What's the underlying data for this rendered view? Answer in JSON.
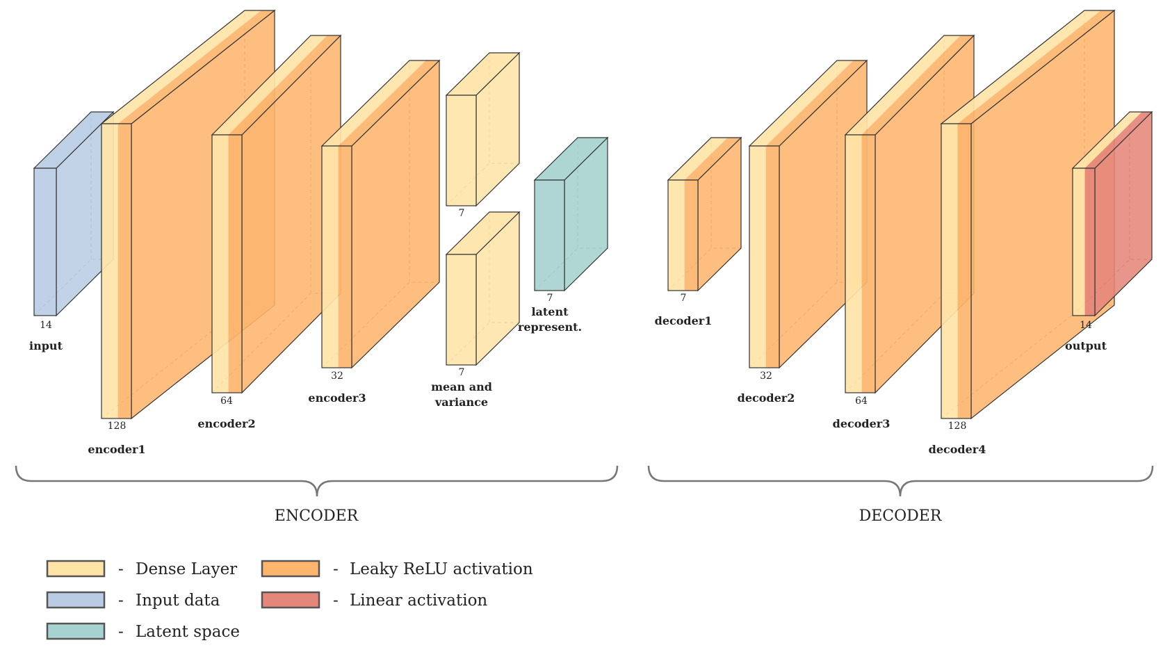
{
  "colors": {
    "dense": "#FFE4A8",
    "leaky_relu": "#FDB56E",
    "input": "#B9CCE4",
    "latent": "#A6D2CF",
    "linear": "#E5867A",
    "stroke": "#333333"
  },
  "layers": [
    {
      "id": "input",
      "name": "input",
      "size": "14",
      "kind": "input"
    },
    {
      "id": "encoder1",
      "name": "encoder1",
      "size": "128",
      "kind": "dense_relu"
    },
    {
      "id": "encoder2",
      "name": "encoder2",
      "size": "64",
      "kind": "dense_relu"
    },
    {
      "id": "encoder3",
      "name": "encoder3",
      "size": "32",
      "kind": "dense_relu"
    },
    {
      "id": "mean",
      "name": "",
      "size": "7",
      "kind": "dense"
    },
    {
      "id": "variance",
      "name": "mean and variance",
      "name_lines": [
        "mean and",
        "variance"
      ],
      "size": "7",
      "kind": "dense"
    },
    {
      "id": "latent",
      "name": "latent represent.",
      "name_lines": [
        "latent",
        "represent."
      ],
      "size": "7",
      "kind": "latent"
    },
    {
      "id": "decoder1",
      "name": "decoder1",
      "size": "7",
      "kind": "dense_relu"
    },
    {
      "id": "decoder2",
      "name": "decoder2",
      "size": "32",
      "kind": "dense_relu"
    },
    {
      "id": "decoder3",
      "name": "decoder3",
      "size": "64",
      "kind": "dense_relu"
    },
    {
      "id": "decoder4",
      "name": "decoder4",
      "size": "128",
      "kind": "dense_relu"
    },
    {
      "id": "output",
      "name": "output",
      "size": "14",
      "kind": "dense_linear"
    }
  ],
  "sections": {
    "encoder": "ENCODER",
    "decoder": "DECODER"
  },
  "legend": {
    "dash": "-",
    "items": [
      {
        "label": "Dense Layer",
        "color_key": "dense"
      },
      {
        "label": "Input data",
        "color_key": "input"
      },
      {
        "label": "Latent space",
        "color_key": "latent"
      },
      {
        "label": "Leaky ReLU activation",
        "color_key": "leaky_relu"
      },
      {
        "label": "Linear activation",
        "color_key": "linear"
      }
    ]
  }
}
